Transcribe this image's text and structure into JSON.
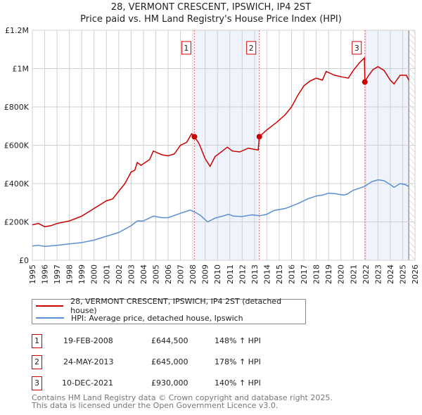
{
  "chart_data": {
    "type": "line",
    "title": "28, VERMONT CRESCENT, IPSWICH, IP4 2ST",
    "subtitle": "Price paid vs. HM Land Registry's House Price Index (HPI)",
    "xlim": [
      1995,
      2026
    ],
    "ylim": [
      0,
      1200000
    ],
    "y_ticks": [
      {
        "v": 0,
        "label": "£0"
      },
      {
        "v": 200000,
        "label": "£200K"
      },
      {
        "v": 400000,
        "label": "£400K"
      },
      {
        "v": 600000,
        "label": "£600K"
      },
      {
        "v": 800000,
        "label": "£800K"
      },
      {
        "v": 1000000,
        "label": "£1M"
      },
      {
        "v": 1200000,
        "label": "£1.2M"
      }
    ],
    "x_ticks": [
      "1995",
      "1996",
      "1997",
      "1998",
      "1999",
      "2000",
      "2001",
      "2002",
      "2003",
      "2004",
      "2005",
      "2006",
      "2007",
      "2008",
      "2009",
      "2010",
      "2011",
      "2012",
      "2013",
      "2014",
      "2015",
      "2016",
      "2017",
      "2018",
      "2019",
      "2020",
      "2021",
      "2022",
      "2023",
      "2024",
      "2025",
      "2026"
    ],
    "grid": true,
    "shaded_periods": [
      [
        2008.13,
        2013.39
      ],
      [
        2021.94,
        2025.5
      ]
    ],
    "forecast_hatch_from": 2025.5,
    "series": [
      {
        "name": "28, VERMONT CRESCENT, IPSWICH, IP4 2ST (detached house)",
        "color": "#cc0000",
        "x": [
          1995,
          1995.5,
          1996,
          1996.5,
          1997,
          1998,
          1999,
          2000,
          2001,
          2001.5,
          2002,
          2002.5,
          2003,
          2003.3,
          2003.5,
          2003.8,
          2004.5,
          2004.8,
          2005.5,
          2006,
          2006.5,
          2007,
          2007.5,
          2007.9,
          2008.13,
          2008.5,
          2009,
          2009.4,
          2009.8,
          2010.5,
          2010.8,
          2011.2,
          2011.8,
          2012.5,
          2013.3,
          2013.39,
          2014,
          2014.8,
          2015.5,
          2016,
          2016.5,
          2017,
          2017.5,
          2018,
          2018.5,
          2018.8,
          2019.5,
          2020.2,
          2020.6,
          2021,
          2021.5,
          2021.9,
          2021.94,
          2022.2,
          2022.6,
          2023,
          2023.5,
          2024,
          2024.3,
          2024.8,
          2025.3,
          2025.5
        ],
        "y": [
          185000,
          192000,
          175000,
          180000,
          192000,
          205000,
          230000,
          270000,
          310000,
          320000,
          360000,
          400000,
          460000,
          470000,
          510000,
          495000,
          525000,
          570000,
          550000,
          545000,
          555000,
          600000,
          615000,
          660000,
          644500,
          610000,
          530000,
          490000,
          540000,
          575000,
          590000,
          570000,
          565000,
          585000,
          575000,
          645000,
          680000,
          720000,
          760000,
          800000,
          860000,
          910000,
          935000,
          950000,
          940000,
          985000,
          965000,
          955000,
          950000,
          990000,
          1030000,
          1055000,
          930000,
          960000,
          995000,
          1010000,
          990000,
          940000,
          920000,
          965000,
          965000,
          940000
        ]
      },
      {
        "name": "HPI: Average price, detached house, Ipswich",
        "color": "#5b8fd4",
        "x": [
          1995,
          1995.5,
          1996,
          1997,
          1998,
          1999,
          2000,
          2001,
          2002,
          2003,
          2003.5,
          2004,
          2004.8,
          2005.5,
          2006,
          2007,
          2007.8,
          2008.2,
          2008.6,
          2009.2,
          2009.8,
          2010.5,
          2010.9,
          2011.3,
          2012,
          2012.8,
          2013.4,
          2014,
          2014.6,
          2015.5,
          2016.5,
          2017.3,
          2018,
          2018.5,
          2019,
          2019.5,
          2020.2,
          2020.5,
          2021,
          2021.9,
          2022.5,
          2023,
          2023.5,
          2024,
          2024.3,
          2024.8,
          2025.2,
          2025.5
        ],
        "y": [
          75000,
          78000,
          72000,
          78000,
          85000,
          92000,
          105000,
          125000,
          145000,
          180000,
          205000,
          205000,
          230000,
          222000,
          222000,
          245000,
          262000,
          250000,
          235000,
          200000,
          220000,
          232000,
          240000,
          230000,
          228000,
          237000,
          232000,
          240000,
          260000,
          270000,
          295000,
          320000,
          335000,
          340000,
          350000,
          348000,
          340000,
          345000,
          365000,
          385000,
          410000,
          420000,
          415000,
          395000,
          380000,
          400000,
          395000,
          385000
        ]
      }
    ],
    "sales": [
      {
        "id": "1",
        "x": 2008.13,
        "y": 644500,
        "date": "19-FEB-2008",
        "price": "£644,500",
        "hpi": "148% ↑ HPI"
      },
      {
        "id": "2",
        "x": 2013.39,
        "y": 645000,
        "date": "24-MAY-2013",
        "price": "£645,000",
        "hpi": "178% ↑ HPI"
      },
      {
        "id": "3",
        "x": 2021.94,
        "y": 930000,
        "date": "10-DEC-2021",
        "price": "£930,000",
        "hpi": "140% ↑ HPI"
      }
    ]
  },
  "footer": {
    "line1": "Contains HM Land Registry data © Crown copyright and database right 2025.",
    "line2": "This data is licensed under the Open Government Licence v3.0."
  }
}
